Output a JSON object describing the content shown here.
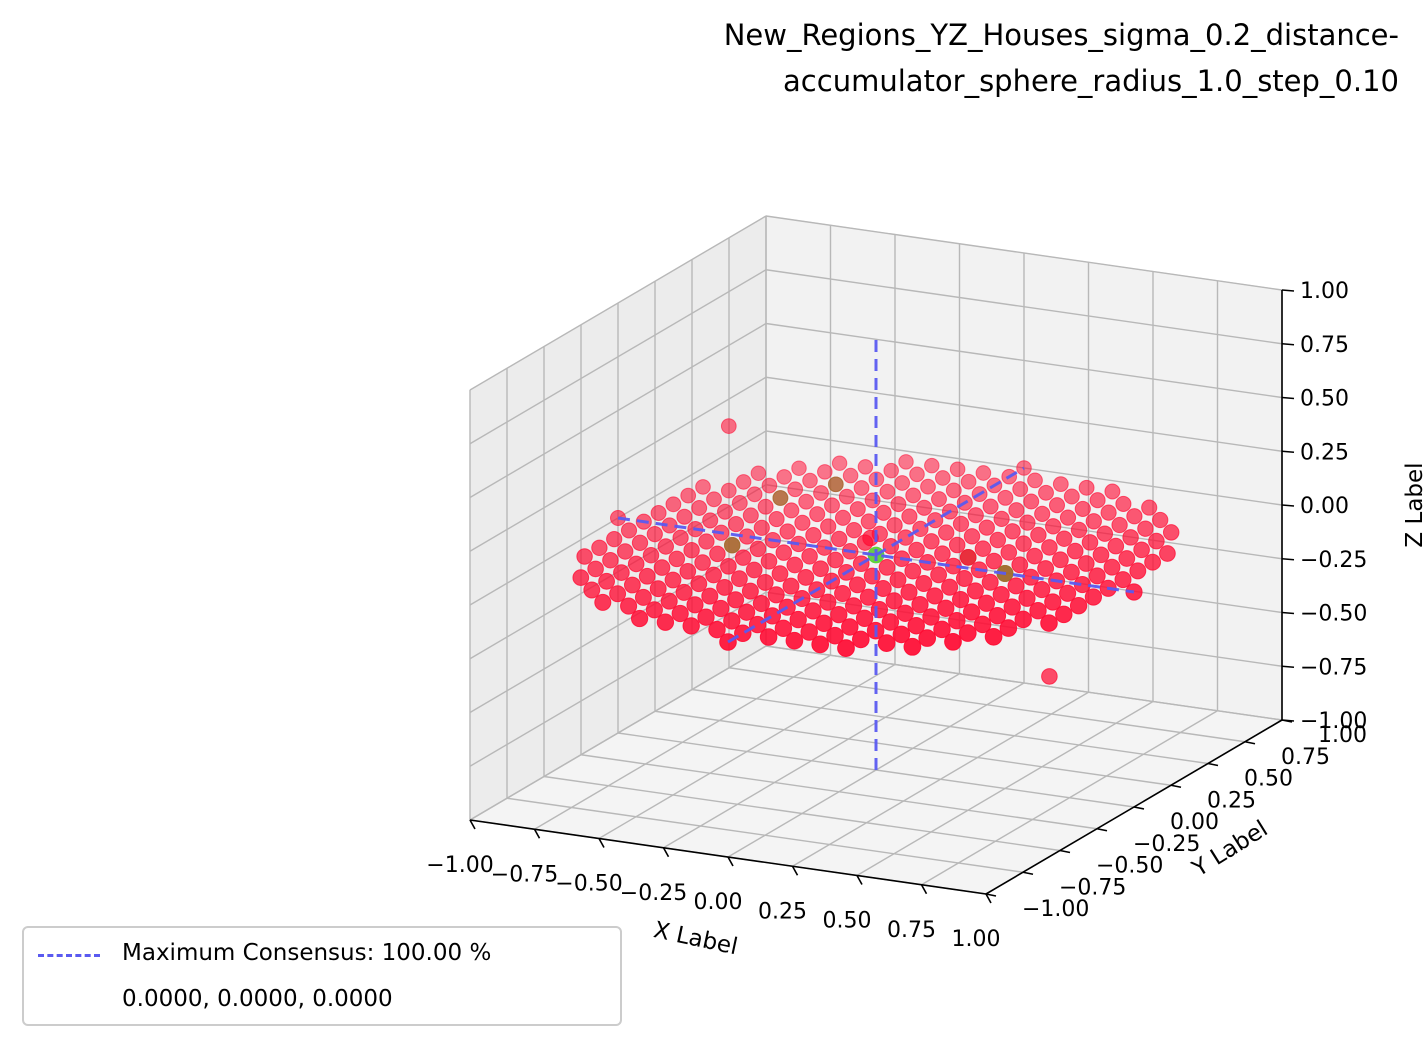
{
  "title": {
    "line1": "New_Regions_YZ_Houses_sigma_0.2_distance-",
    "line2": "accumulator_sphere_radius_1.0_step_0.10"
  },
  "legend": {
    "line_label": "Maximum Consensus: 100.00 %",
    "coords_label": "0.0000, 0.0000, 0.0000"
  },
  "chart_data": {
    "type": "scatter",
    "projection": "3d",
    "title": "New_Regions_YZ_Houses_sigma_0.2_distance-accumulator_sphere_radius_1.0_step_0.10",
    "xlabel": "X Label",
    "ylabel": "Y Label",
    "zlabel": "Z Label",
    "xlim": [
      -1.0,
      1.0
    ],
    "ylim": [
      -1.0,
      1.0
    ],
    "zlim": [
      -1.0,
      1.0
    ],
    "x_ticks": [
      "−1.00",
      "−0.75",
      "−0.50",
      "−0.25",
      "0.00",
      "0.25",
      "0.50",
      "0.75",
      "1.00"
    ],
    "y_ticks": [
      "−1.00",
      "−0.75",
      "−0.50",
      "−0.25",
      "0.00",
      "0.25",
      "0.50",
      "0.75",
      "1.00"
    ],
    "z_ticks": [
      "−1.00",
      "−0.75",
      "−0.50",
      "−0.25",
      "0.00",
      "0.25",
      "0.50",
      "0.75",
      "1.00"
    ],
    "grid": true,
    "legend_position": "lower-left",
    "colors": {
      "points": "#ff0a32",
      "highlight_points": "#8c7f2a",
      "maximum": "#33ff33",
      "consensus_lines": "#5a5af0"
    },
    "series": [
      {
        "kind": "grid-disc",
        "step": 0.1,
        "radius": 1.0,
        "z": 0.0,
        "color": "#ff0a32"
      },
      {
        "kind": "points",
        "color": "#ff0a32",
        "points": [
          [
            -0.8,
            0.4,
            0.3
          ],
          [
            0.5,
            0.3,
            -0.6
          ],
          [
            -0.05,
            0.05,
            0.05
          ]
        ]
      },
      {
        "kind": "points",
        "color": "#8c7f2a",
        "points": [
          [
            -0.6,
            0.4,
            0.0
          ],
          [
            -0.5,
            -0.1,
            0.0
          ],
          [
            0.3,
            0.1,
            0.0
          ],
          [
            0.5,
            0.0,
            0.0
          ],
          [
            -0.5,
            0.6,
            0.0
          ]
        ]
      },
      {
        "kind": "points",
        "name": "maximum",
        "color": "#33ff33",
        "points": [
          [
            0.0,
            0.0,
            0.0
          ]
        ]
      },
      {
        "kind": "lines",
        "name": "Maximum Consensus: 100.00 %",
        "style": "dashed",
        "color": "#5a5af0",
        "segments": [
          [
            [
              -1.0,
              0.0,
              0.0
            ],
            [
              1.0,
              0.0,
              0.0
            ]
          ],
          [
            [
              0.0,
              -1.0,
              0.0
            ],
            [
              0.0,
              1.0,
              0.0
            ]
          ],
          [
            [
              0.0,
              0.0,
              -1.0
            ],
            [
              0.0,
              0.0,
              1.0
            ]
          ]
        ]
      }
    ]
  }
}
